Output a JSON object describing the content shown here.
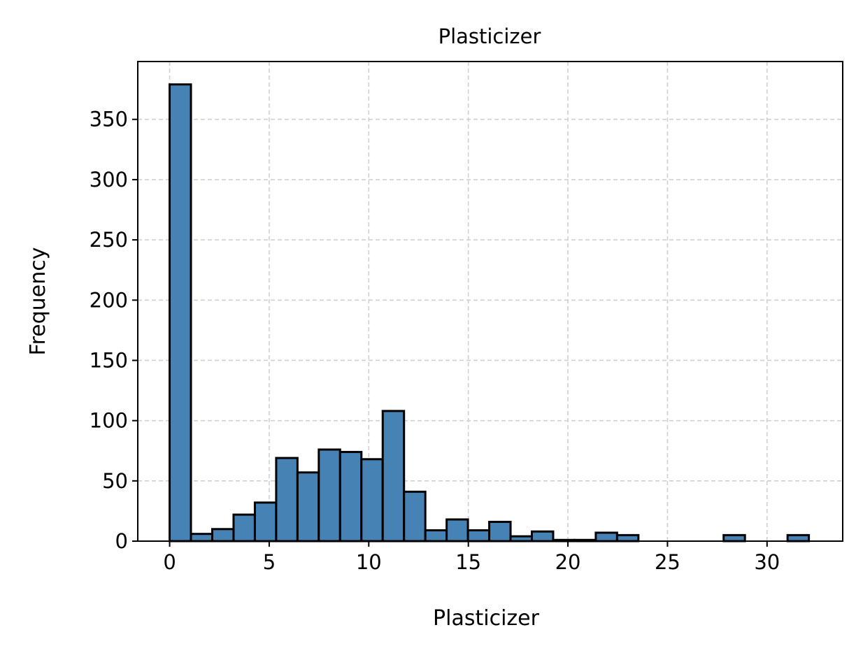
{
  "chart_data": {
    "type": "bar",
    "title": "Plasticizer",
    "xlabel": "Plasticizer",
    "ylabel": "Frequency",
    "xlim": [
      -1.6,
      33.8
    ],
    "ylim": [
      0,
      398
    ],
    "xticks": [
      0,
      5,
      10,
      15,
      20,
      25,
      30
    ],
    "yticks": [
      0,
      50,
      100,
      150,
      200,
      250,
      300,
      350
    ],
    "grid": true,
    "bar_color": "#4682b4",
    "edge_color": "#000000",
    "bin_start": 0,
    "bin_width": 1.07,
    "values": [
      379,
      6,
      10,
      22,
      32,
      69,
      57,
      76,
      74,
      68,
      108,
      41,
      9,
      18,
      9,
      16,
      4,
      8,
      1,
      1,
      7,
      5,
      0,
      0,
      0,
      0,
      5,
      0,
      0,
      5
    ]
  }
}
